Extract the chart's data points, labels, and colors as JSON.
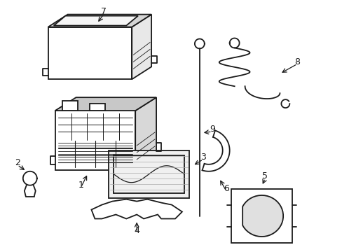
{
  "bg_color": "#ffffff",
  "line_color": "#1a1a1a",
  "line_width": 1.3,
  "figsize": [
    4.89,
    3.6
  ],
  "dpi": 100
}
